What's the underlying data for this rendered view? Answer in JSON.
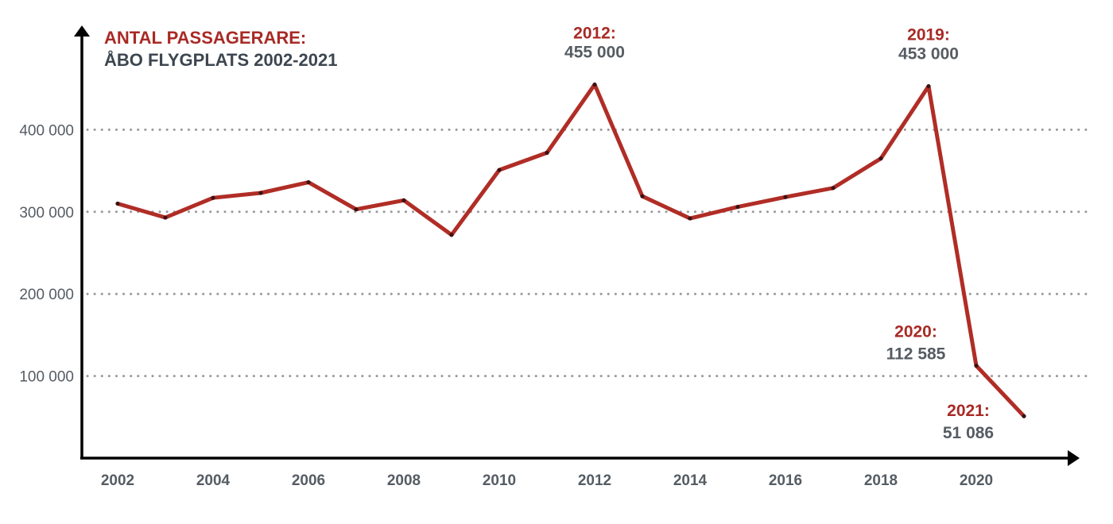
{
  "chart_data": {
    "type": "line",
    "title": "ANTAL PASSAGERARE:",
    "subtitle": "ÅBO FLYGPLATS 2002-2021",
    "x": [
      2002,
      2003,
      2004,
      2005,
      2006,
      2007,
      2008,
      2009,
      2010,
      2011,
      2012,
      2013,
      2014,
      2015,
      2016,
      2017,
      2018,
      2019,
      2020,
      2021
    ],
    "series": [
      {
        "values": [
          310000,
          293000,
          317000,
          323000,
          336000,
          303000,
          314000,
          272000,
          351000,
          372000,
          455000,
          319000,
          292000,
          306000,
          318000,
          329000,
          365000,
          453000,
          112585,
          51086
        ],
        "color": "#b02d26"
      }
    ],
    "x_ticks": [
      "2002",
      "2004",
      "2006",
      "2008",
      "2010",
      "2012",
      "2014",
      "2016",
      "2018",
      "2020"
    ],
    "x_tick_values": [
      2002,
      2004,
      2006,
      2008,
      2010,
      2012,
      2014,
      2016,
      2018,
      2020
    ],
    "y_ticks": [
      "100 000",
      "200 000",
      "300 000",
      "400 000"
    ],
    "y_tick_values": [
      100000,
      200000,
      300000,
      400000
    ],
    "xlim": [
      2001.25,
      2022.0
    ],
    "ylim": [
      0,
      500000
    ],
    "grid": true,
    "annotations": [
      {
        "x": 2012,
        "year": "2012:",
        "value": "455 000"
      },
      {
        "x": 2019,
        "year": "2019:",
        "value": "453 000"
      },
      {
        "x": 2020,
        "year": "2020:",
        "value": "112 585"
      },
      {
        "x": 2021,
        "year": "2021:",
        "value": "51 086"
      }
    ],
    "accent_color": "#a82a25",
    "text_color": "#555c63"
  }
}
